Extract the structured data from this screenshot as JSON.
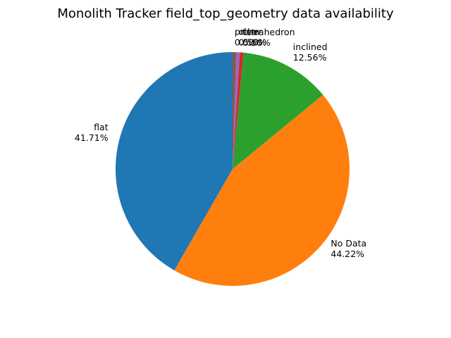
{
  "chart_data": {
    "type": "pie",
    "title": "Monolith Tracker field_top_geometry data availability",
    "start_angle_deg": 90,
    "direction": "counterclockwise",
    "slices": [
      {
        "label": "flat",
        "value": 41.71,
        "pct_text": "41.71%",
        "color": "#1f77b4"
      },
      {
        "label": "No Data",
        "value": 44.22,
        "pct_text": "44.22%",
        "color": "#ff7f0e"
      },
      {
        "label": "inclined",
        "value": 12.56,
        "pct_text": "12.56%",
        "color": "#2ca02c"
      },
      {
        "label": "tetrahedron",
        "value": 0.5,
        "pct_text": "0.50%",
        "color": "#d62728"
      },
      {
        "label": "other",
        "value": 0.5,
        "pct_text": "0.50%",
        "color": "#9467bd"
      },
      {
        "label": "prism",
        "value": 0.5,
        "pct_text": "0.50%",
        "color": "#8c564b"
      }
    ]
  }
}
